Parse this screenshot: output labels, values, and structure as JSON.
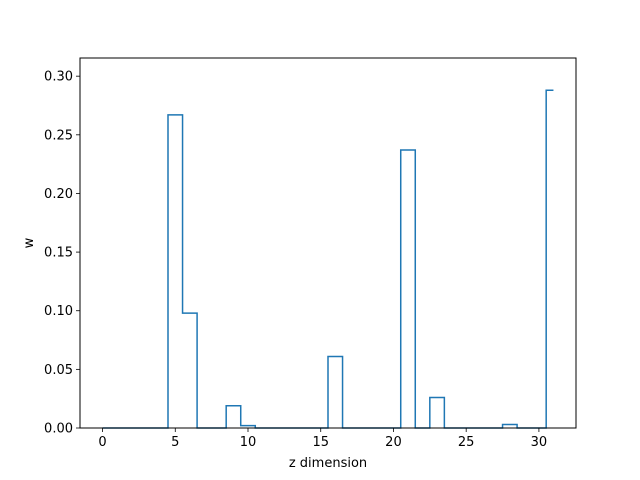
{
  "chart_data": {
    "type": "line",
    "style": "step",
    "xlabel": "z dimension",
    "ylabel": "w",
    "xlim": [
      -1.55,
      32.55
    ],
    "ylim": [
      0,
      0.3155
    ],
    "grid": false,
    "legend": "none",
    "color": "#1f77b4",
    "x_ticks": [
      0,
      5,
      10,
      15,
      20,
      25,
      30
    ],
    "y_ticks": [
      0.0,
      0.05,
      0.1,
      0.15,
      0.2,
      0.25,
      0.3
    ],
    "x_tick_labels": [
      "0",
      "5",
      "10",
      "15",
      "20",
      "25",
      "30"
    ],
    "y_tick_labels": [
      "0.00",
      "0.05",
      "0.10",
      "0.15",
      "0.20",
      "0.25",
      "0.30"
    ],
    "x": [
      0,
      1,
      2,
      3,
      4,
      5,
      6,
      7,
      8,
      9,
      10,
      11,
      12,
      13,
      14,
      15,
      16,
      17,
      18,
      19,
      20,
      21,
      22,
      23,
      24,
      25,
      26,
      27,
      28,
      29,
      30,
      31
    ],
    "values": [
      0,
      0,
      0,
      0,
      0,
      0.267,
      0.098,
      0,
      0,
      0.019,
      0.002,
      0,
      0,
      0,
      0,
      0,
      0.061,
      0,
      0,
      0,
      0,
      0.237,
      0,
      0.026,
      0,
      0,
      0,
      0,
      0.003,
      0,
      0,
      0.288
    ]
  }
}
